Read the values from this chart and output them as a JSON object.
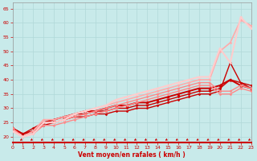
{
  "xlabel": "Vent moyen/en rafales ( km/h )",
  "xlim": [
    0,
    23
  ],
  "ylim": [
    18,
    67
  ],
  "yticks": [
    20,
    25,
    30,
    35,
    40,
    45,
    50,
    55,
    60,
    65
  ],
  "xticks": [
    0,
    1,
    2,
    3,
    4,
    5,
    6,
    7,
    8,
    9,
    10,
    11,
    12,
    13,
    14,
    15,
    16,
    17,
    18,
    19,
    20,
    21,
    22,
    23
  ],
  "bg_color": "#c8eaea",
  "grid_color": "#b0d8d8",
  "series": [
    {
      "x": [
        0,
        1,
        2,
        3,
        4,
        5,
        6,
        7,
        8,
        9,
        10,
        11,
        12,
        13,
        14,
        15,
        16,
        17,
        18,
        19,
        20,
        21,
        22,
        23
      ],
      "y": [
        23,
        21,
        22,
        24,
        25,
        26,
        27,
        27,
        28,
        28,
        29,
        29,
        30,
        30,
        31,
        32,
        33,
        34,
        35,
        35,
        36,
        46,
        39,
        37
      ],
      "color": "#cc0000",
      "lw": 1.0,
      "marker": "D",
      "ms": 1.5
    },
    {
      "x": [
        0,
        1,
        2,
        3,
        4,
        5,
        6,
        7,
        8,
        9,
        10,
        11,
        12,
        13,
        14,
        15,
        16,
        17,
        18,
        19,
        20,
        21,
        22,
        23
      ],
      "y": [
        23,
        21,
        23,
        25,
        26,
        27,
        28,
        28,
        29,
        29,
        30,
        30,
        31,
        31,
        32,
        33,
        34,
        35,
        36,
        36,
        37,
        40,
        39,
        38
      ],
      "color": "#cc0000",
      "lw": 1.0,
      "marker": "D",
      "ms": 1.5
    },
    {
      "x": [
        0,
        1,
        2,
        3,
        4,
        5,
        6,
        7,
        8,
        9,
        10,
        11,
        12,
        13,
        14,
        15,
        16,
        17,
        18,
        19,
        20,
        21,
        22,
        23
      ],
      "y": [
        23,
        21,
        22,
        25,
        26,
        27,
        28,
        29,
        29,
        30,
        31,
        31,
        32,
        32,
        33,
        34,
        35,
        36,
        37,
        37,
        38,
        40,
        38,
        37
      ],
      "color": "#cc0000",
      "lw": 1.4,
      "marker": "^",
      "ms": 2.5
    },
    {
      "x": [
        0,
        1,
        2,
        3,
        4,
        5,
        6,
        7,
        8,
        9,
        10,
        11,
        12,
        13,
        14,
        15,
        16,
        17,
        18,
        19,
        20,
        21,
        22,
        23
      ],
      "y": [
        23,
        20,
        21,
        24,
        24,
        25,
        26,
        27,
        28,
        29,
        30,
        31,
        32,
        33,
        34,
        35,
        36,
        37,
        38,
        38,
        35,
        35,
        37,
        36
      ],
      "color": "#ff8888",
      "lw": 1.0,
      "marker": "D",
      "ms": 1.5
    },
    {
      "x": [
        0,
        1,
        2,
        3,
        4,
        5,
        6,
        7,
        8,
        9,
        10,
        11,
        12,
        13,
        14,
        15,
        16,
        17,
        18,
        19,
        20,
        21,
        22,
        23
      ],
      "y": [
        23,
        20,
        22,
        25,
        25,
        26,
        27,
        28,
        29,
        30,
        31,
        32,
        33,
        34,
        35,
        36,
        37,
        38,
        39,
        39,
        36,
        36,
        38,
        37
      ],
      "color": "#ff8888",
      "lw": 1.0,
      "marker": "D",
      "ms": 1.5
    },
    {
      "x": [
        0,
        1,
        2,
        3,
        4,
        5,
        6,
        7,
        8,
        9,
        10,
        11,
        12,
        13,
        14,
        15,
        16,
        17,
        18,
        19,
        20,
        21,
        22,
        23
      ],
      "y": [
        22,
        20,
        22,
        26,
        26,
        27,
        28,
        29,
        30,
        31,
        32,
        33,
        34,
        35,
        36,
        37,
        38,
        39,
        40,
        40,
        50,
        53,
        61,
        59
      ],
      "color": "#ffaaaa",
      "lw": 1.2,
      "marker": "D",
      "ms": 1.5
    },
    {
      "x": [
        0,
        1,
        2,
        3,
        4,
        5,
        6,
        7,
        8,
        9,
        10,
        11,
        12,
        13,
        14,
        15,
        16,
        17,
        18,
        19,
        20,
        21,
        22,
        23
      ],
      "y": [
        22,
        20,
        21,
        25,
        25,
        26,
        28,
        29,
        30,
        31,
        33,
        34,
        35,
        36,
        37,
        38,
        39,
        40,
        41,
        41,
        51,
        46,
        62,
        58
      ],
      "color": "#ffcccc",
      "lw": 1.5,
      "marker": "D",
      "ms": 1.5
    }
  ],
  "arrow_color": "#cc0000"
}
